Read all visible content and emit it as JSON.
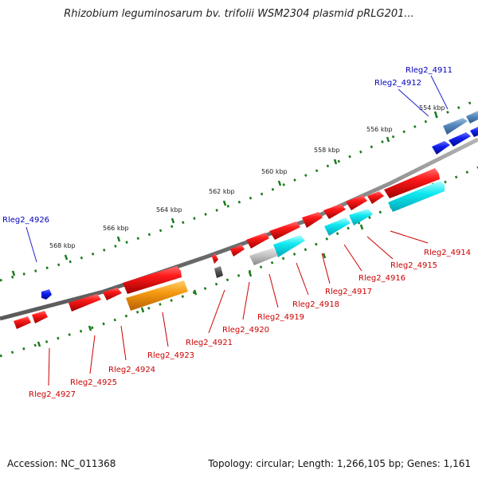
{
  "title": "Rhizobium leguminosarum bv. trifolii WSM2304 plasmid pRLG201...",
  "footer": {
    "accession": "Accession: NC_011368",
    "topology": "Topology: circular; Length: 1,266,105 bp; Genes: 1,161"
  },
  "colors": {
    "forward_gene": "#e8000a",
    "reverse_gene": "#00e5f0",
    "steelblue_gene": "#4a7fb0",
    "blue_gene": "#0a14e0",
    "orange_gene": "#f08c00",
    "gray_gene": "#a0a0a0",
    "dark_gene": "#505050",
    "backbone": "#808080",
    "tick": "#1a7a1a",
    "forward_label": "#cc0000",
    "blue_label": "#0000bb"
  },
  "tick_labels": [
    "554 kbp",
    "556 kbp",
    "558 kbp",
    "560 kbp",
    "562 kbp",
    "564 kbp",
    "566 kbp",
    "568 kbp"
  ],
  "genes_top": [
    "Rleg2_4911",
    "Rleg2_4912",
    "Rleg2_4926"
  ],
  "genes_bottom": [
    "Rleg2_4914",
    "Rleg2_4915",
    "Rleg2_4916",
    "Rleg2_4917",
    "Rleg2_4918",
    "Rleg2_4919",
    "Rleg2_4920",
    "Rleg2_4921",
    "Rleg2_4923",
    "Rleg2_4924",
    "Rleg2_4925",
    "Rleg2_4927"
  ]
}
